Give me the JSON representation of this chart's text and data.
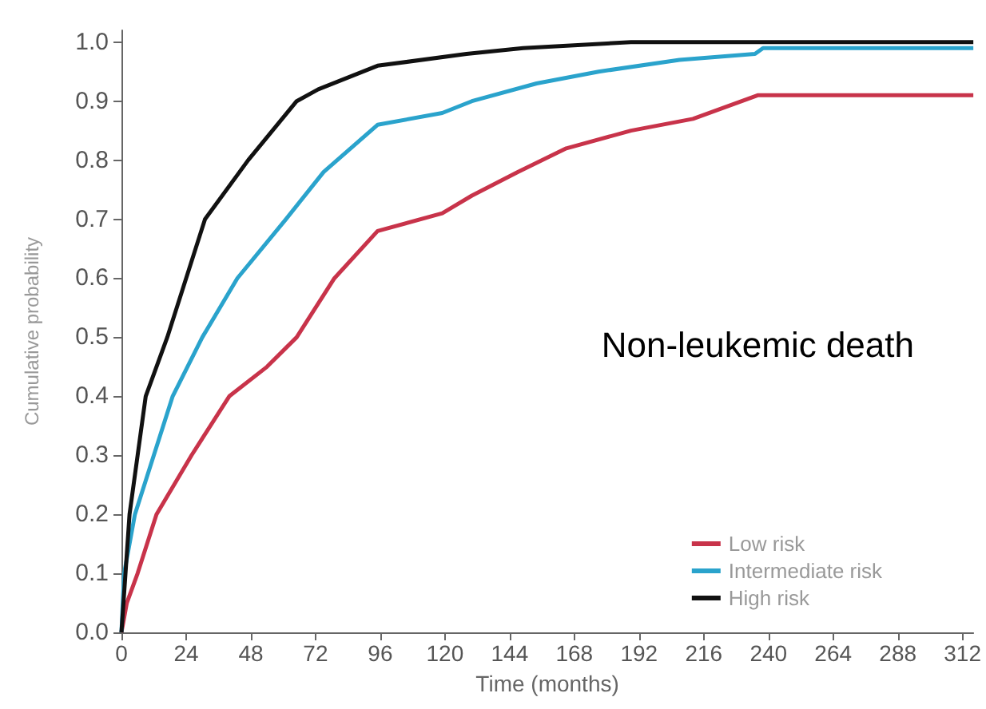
{
  "chart_data": {
    "type": "line",
    "xlabel": "Time (months)",
    "ylabel": "Cumulative probability",
    "annotations": [
      "Non-leukemic death"
    ],
    "xlim": [
      0,
      316
    ],
    "xticks": [
      0,
      24,
      48,
      72,
      96,
      120,
      144,
      168,
      192,
      216,
      240,
      264,
      288,
      312
    ],
    "ylim": [
      0,
      1.02
    ],
    "yticks": [
      {
        "value": 0,
        "label": "0.0"
      },
      {
        "value": 0.1,
        "label": "0.1"
      },
      {
        "value": 0.2,
        "label": "0.2"
      },
      {
        "value": 0.3,
        "label": "0.3"
      },
      {
        "value": 0.4,
        "label": "0.4"
      },
      {
        "value": 0.5,
        "label": "0.5"
      },
      {
        "value": 0.6,
        "label": "0.6"
      },
      {
        "value": 0.7,
        "label": "0.7"
      },
      {
        "value": 0.8,
        "label": "0.8"
      },
      {
        "value": 0.9,
        "label": "0.9"
      },
      {
        "value": 1,
        "label": "1.0"
      }
    ],
    "grid": false,
    "legend": "bottom right",
    "marker": "none",
    "line_style": "solid",
    "series": [
      {
        "name": "Low risk",
        "color": "#c8334a",
        "x": [
          0,
          2,
          6,
          13,
          26,
          40,
          54,
          65,
          79,
          95,
          119,
          130,
          147,
          165,
          189,
          212,
          224,
          236,
          316
        ],
        "values": [
          0,
          0.05,
          0.1,
          0.2,
          0.3,
          0.4,
          0.45,
          0.5,
          0.6,
          0.68,
          0.71,
          0.74,
          0.78,
          0.82,
          0.85,
          0.87,
          0.89,
          0.91,
          0.91
        ]
      },
      {
        "name": "Intermediate risk",
        "color": "#2aa3cc",
        "x": [
          0,
          1,
          5,
          12,
          19,
          30,
          43,
          61,
          75,
          95,
          119,
          130,
          154,
          177,
          207,
          235,
          238,
          316
        ],
        "values": [
          0,
          0.1,
          0.2,
          0.3,
          0.4,
          0.5,
          0.6,
          0.7,
          0.78,
          0.86,
          0.88,
          0.9,
          0.93,
          0.95,
          0.97,
          0.98,
          0.99,
          0.99
        ]
      },
      {
        "name": "High risk",
        "color": "#111111",
        "x": [
          0,
          3,
          6,
          9,
          17,
          31,
          47,
          65,
          73,
          95,
          128,
          149,
          189,
          316
        ],
        "values": [
          0,
          0.2,
          0.3,
          0.4,
          0.5,
          0.7,
          0.8,
          0.9,
          0.92,
          0.96,
          0.98,
          0.99,
          1.0,
          1.0
        ]
      }
    ]
  }
}
